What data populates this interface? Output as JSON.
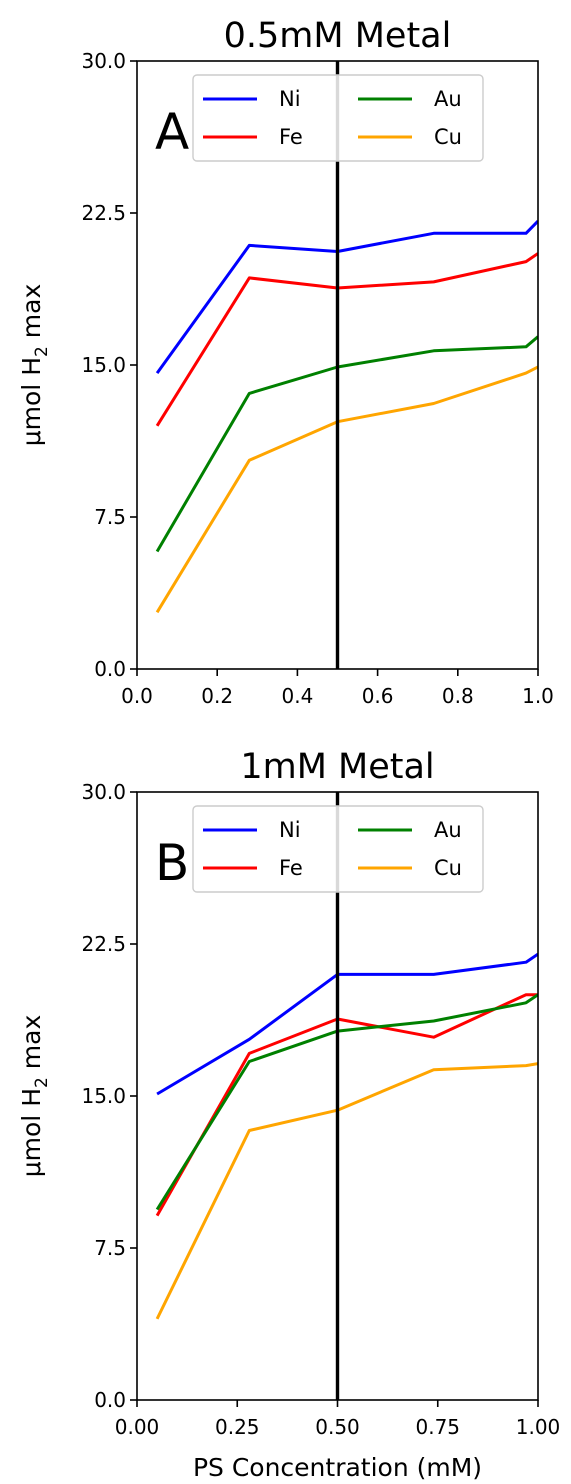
{
  "chart_data": [
    {
      "type": "line",
      "title": "0.5mM Metal",
      "panel_label": "A",
      "xlabel": "",
      "ylabel_main": "μmol H",
      "ylabel_sub": "2",
      "ylabel_tail": " max",
      "xlim": [
        0,
        1
      ],
      "ylim": [
        0,
        30
      ],
      "xticks": [
        "0.0",
        "0.2",
        "0.4",
        "0.6",
        "0.8",
        "1.0"
      ],
      "xtick_values": [
        0,
        0.2,
        0.4,
        0.6,
        0.8,
        1.0
      ],
      "yticks": [
        "0.0",
        "7.5",
        "15.0",
        "22.5",
        "30.0"
      ],
      "ytick_values": [
        0,
        7.5,
        15,
        22.5,
        30
      ],
      "vline_x": 0.5,
      "legend_location": "top",
      "x": [
        0.05,
        0.28,
        0.5,
        0.74,
        0.97,
        1.0
      ],
      "series": [
        {
          "name": "Ni",
          "color": "#0000ff",
          "values": [
            14.6,
            20.9,
            20.6,
            21.5,
            21.5,
            22.1
          ]
        },
        {
          "name": "Fe",
          "color": "#ff0000",
          "values": [
            12.0,
            19.3,
            18.8,
            19.1,
            20.1,
            20.5
          ]
        },
        {
          "name": "Au",
          "color": "#008000",
          "values": [
            5.8,
            13.6,
            14.9,
            15.7,
            15.9,
            16.4
          ]
        },
        {
          "name": "Cu",
          "color": "#ffa500",
          "values": [
            2.8,
            10.3,
            12.2,
            13.1,
            14.6,
            14.9
          ]
        }
      ]
    },
    {
      "type": "line",
      "title": "1mM Metal",
      "panel_label": "B",
      "xlabel": "PS Concentration (mM)",
      "ylabel_main": "μmol H",
      "ylabel_sub": "2",
      "ylabel_tail": " max",
      "xlim": [
        0,
        1
      ],
      "ylim": [
        0,
        30
      ],
      "xticks": [
        "0.00",
        "0.25",
        "0.50",
        "0.75",
        "1.00"
      ],
      "xtick_values": [
        0,
        0.25,
        0.5,
        0.75,
        1.0
      ],
      "yticks": [
        "0.0",
        "7.5",
        "15.0",
        "22.5",
        "30.0"
      ],
      "ytick_values": [
        0,
        7.5,
        15,
        22.5,
        30
      ],
      "vline_x": 0.5,
      "legend_location": "top",
      "x": [
        0.05,
        0.28,
        0.5,
        0.74,
        0.97,
        1.0
      ],
      "series": [
        {
          "name": "Ni",
          "color": "#0000ff",
          "values": [
            15.1,
            17.8,
            21.0,
            21.0,
            21.6,
            22.0
          ]
        },
        {
          "name": "Fe",
          "color": "#ff0000",
          "values": [
            9.1,
            17.1,
            18.8,
            17.9,
            20.0,
            20.0
          ]
        },
        {
          "name": "Au",
          "color": "#008000",
          "values": [
            9.4,
            16.7,
            18.2,
            18.7,
            19.6,
            20.0
          ]
        },
        {
          "name": "Cu",
          "color": "#ffa500",
          "values": [
            4.0,
            13.3,
            14.3,
            16.3,
            16.5,
            16.6
          ]
        }
      ]
    }
  ]
}
